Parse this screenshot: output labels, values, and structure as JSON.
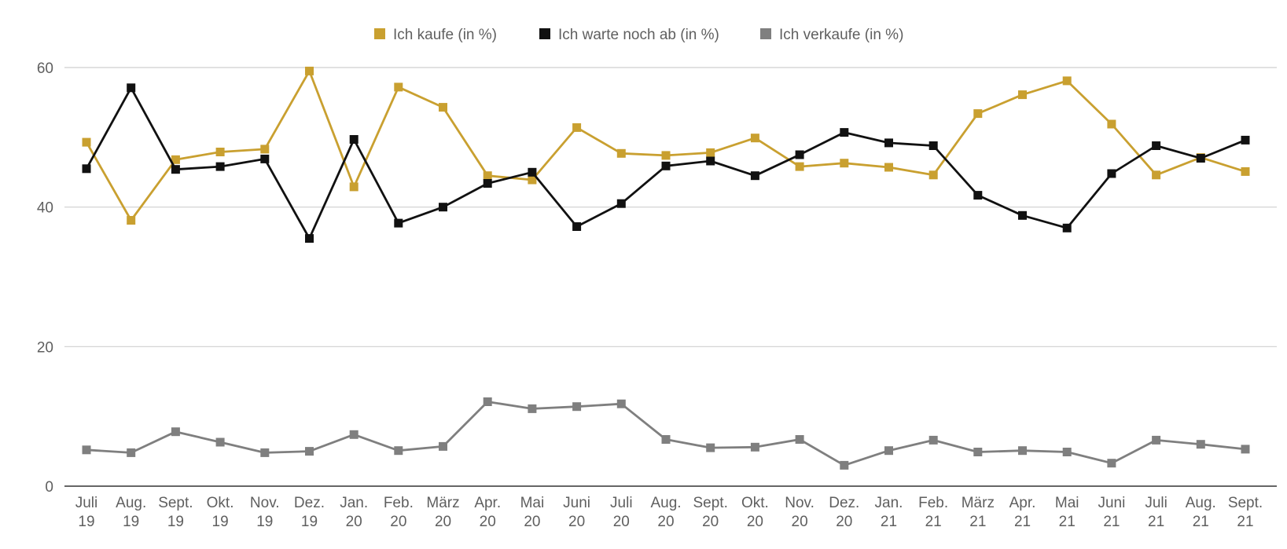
{
  "chart_data": {
    "type": "line",
    "title": "",
    "xlabel": "",
    "ylabel": "",
    "ylim": [
      0,
      60
    ],
    "yticks": [
      0,
      20,
      40,
      60
    ],
    "grid": true,
    "legend_position": "top-center",
    "categories": [
      [
        "Juli",
        "19"
      ],
      [
        "Aug.",
        "19"
      ],
      [
        "Sept.",
        "19"
      ],
      [
        "Okt.",
        "19"
      ],
      [
        "Nov.",
        "19"
      ],
      [
        "Dez.",
        "19"
      ],
      [
        "Jan.",
        "20"
      ],
      [
        "Feb.",
        "20"
      ],
      [
        "März",
        "20"
      ],
      [
        "Apr.",
        "20"
      ],
      [
        "Mai",
        "20"
      ],
      [
        "Juni",
        "20"
      ],
      [
        "Juli",
        "20"
      ],
      [
        "Aug.",
        "20"
      ],
      [
        "Sept.",
        "20"
      ],
      [
        "Okt.",
        "20"
      ],
      [
        "Nov.",
        "20"
      ],
      [
        "Dez.",
        "20"
      ],
      [
        "Jan.",
        "21"
      ],
      [
        "Feb.",
        "21"
      ],
      [
        "März",
        "21"
      ],
      [
        "Apr.",
        "21"
      ],
      [
        "Mai",
        "21"
      ],
      [
        "Juni",
        "21"
      ],
      [
        "Juli",
        "21"
      ],
      [
        "Aug.",
        "21"
      ],
      [
        "Sept.",
        "21"
      ]
    ],
    "series": [
      {
        "name": "Ich kaufe (in %)",
        "color": "#c9a030",
        "values": [
          49.3,
          38.1,
          46.8,
          47.9,
          48.3,
          59.5,
          42.9,
          57.2,
          54.3,
          44.5,
          43.9,
          51.4,
          47.7,
          47.4,
          47.8,
          49.9,
          45.8,
          46.3,
          45.7,
          44.6,
          53.4,
          56.1,
          58.1,
          51.9,
          44.6,
          47.1,
          45.1
        ]
      },
      {
        "name": "Ich warte noch ab (in %)",
        "color": "#111111",
        "values": [
          45.5,
          57.1,
          45.4,
          45.8,
          46.9,
          35.5,
          49.7,
          37.7,
          40.0,
          43.4,
          45.0,
          37.2,
          40.5,
          45.9,
          46.6,
          44.5,
          47.5,
          50.7,
          49.2,
          48.8,
          41.7,
          38.8,
          37.0,
          44.8,
          48.8,
          47.0,
          49.6
        ]
      },
      {
        "name": "Ich verkaufe (in %)",
        "color": "#7f7f7f",
        "values": [
          5.2,
          4.8,
          7.8,
          6.3,
          4.8,
          5.0,
          7.4,
          5.1,
          5.7,
          12.1,
          11.1,
          11.4,
          11.8,
          6.7,
          5.5,
          5.6,
          6.7,
          3.0,
          5.1,
          6.6,
          4.9,
          5.1,
          4.9,
          3.3,
          6.6,
          6.0,
          5.3
        ]
      }
    ]
  }
}
